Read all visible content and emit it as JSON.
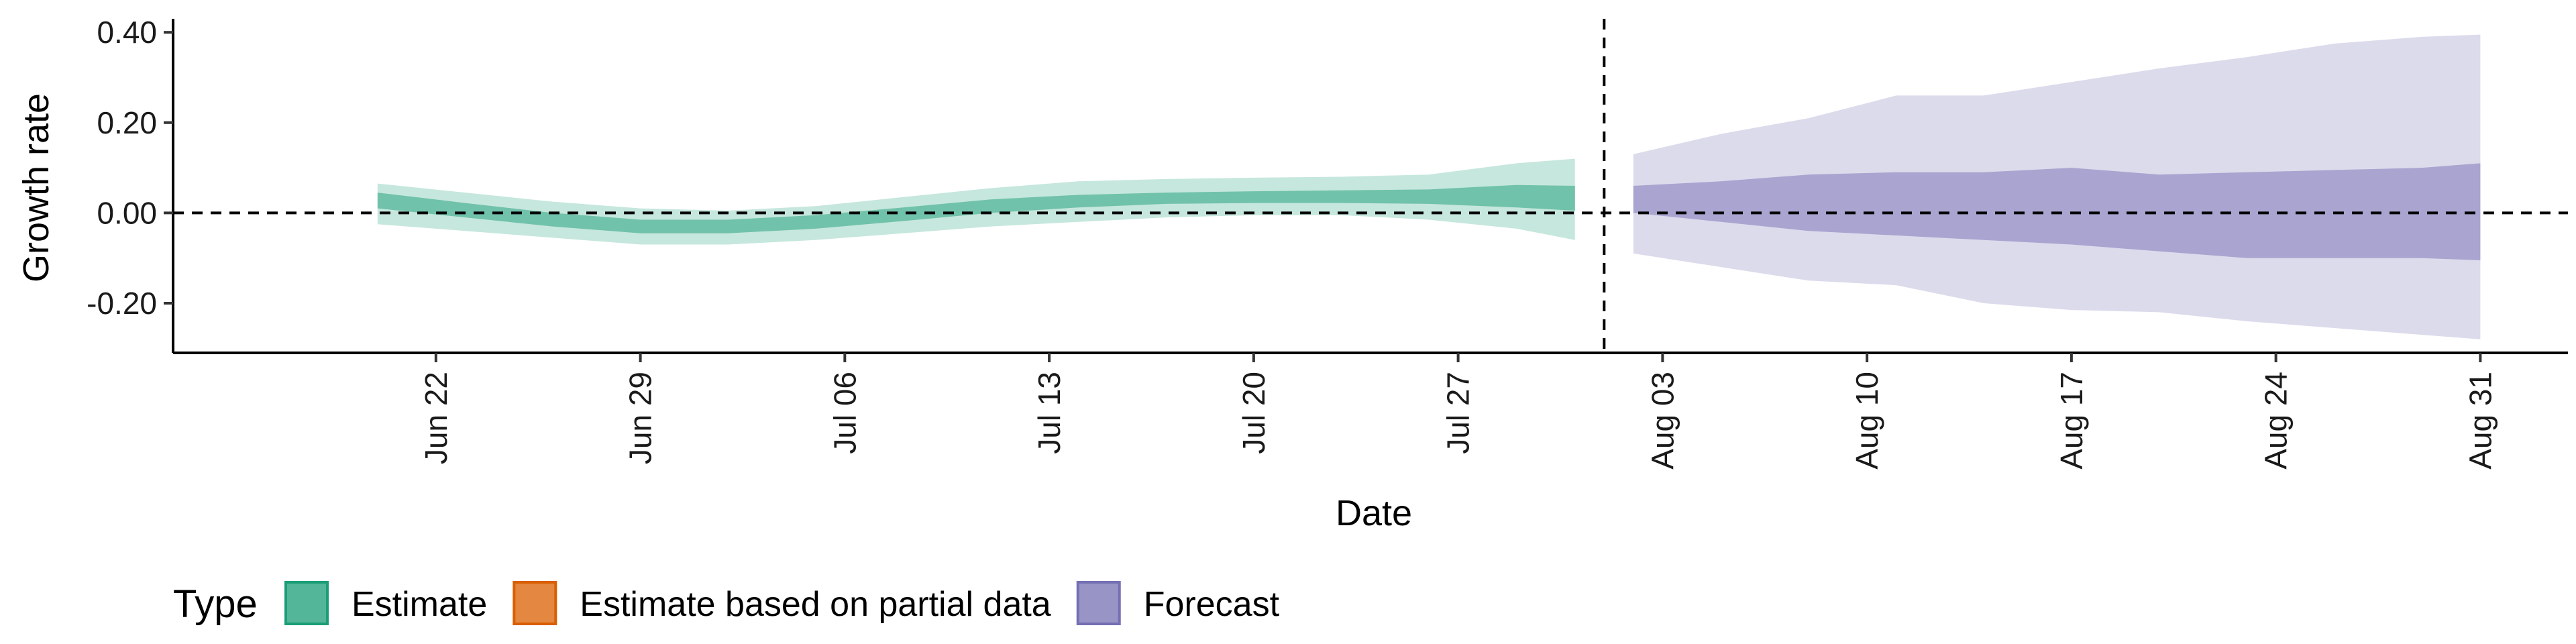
{
  "chart_data": {
    "type": "area",
    "xlabel": "Date",
    "ylabel": "Growth rate",
    "ylim": [
      -0.31,
      0.43
    ],
    "yticks": [
      0.4,
      0.2,
      0.0,
      -0.2
    ],
    "ytick_labels": [
      "0.40",
      "0.20",
      "0.00",
      "-0.20"
    ],
    "xlim": [
      "2020-06-13",
      "2020-09-03"
    ],
    "xticks": [
      "2020-06-22",
      "2020-06-29",
      "2020-07-06",
      "2020-07-13",
      "2020-07-20",
      "2020-07-27",
      "2020-08-03",
      "2020-08-10",
      "2020-08-17",
      "2020-08-24",
      "2020-08-31"
    ],
    "xtick_labels": [
      "Jun 22",
      "Jun 29",
      "Jul 06",
      "Jul 13",
      "Jul 20",
      "Jul 27",
      "Aug 03",
      "Aug 10",
      "Aug 17",
      "Aug 24",
      "Aug 31"
    ],
    "reference_lines": {
      "horizontal_y": 0.0,
      "vertical_x": "2020-08-01"
    },
    "grid": false,
    "legend": {
      "position": "bottom",
      "title": "Type",
      "entries": [
        {
          "label": "Estimate",
          "color": "#1b9e77"
        },
        {
          "label": "Estimate based on partial data",
          "color": "#d95f02"
        },
        {
          "label": "Forecast",
          "color": "#7570b3"
        }
      ]
    },
    "series": [
      {
        "name": "Estimate",
        "color": "#1b9e77",
        "x": [
          "2020-06-20",
          "2020-06-23",
          "2020-06-26",
          "2020-06-29",
          "2020-07-02",
          "2020-07-05",
          "2020-07-08",
          "2020-07-11",
          "2020-07-14",
          "2020-07-17",
          "2020-07-20",
          "2020-07-23",
          "2020-07-26",
          "2020-07-29",
          "2020-07-31"
        ],
        "outer_upper": [
          0.065,
          0.045,
          0.025,
          0.01,
          0.005,
          0.015,
          0.035,
          0.055,
          0.07,
          0.075,
          0.078,
          0.08,
          0.085,
          0.11,
          0.12
        ],
        "outer_lower": [
          -0.025,
          -0.04,
          -0.055,
          -0.07,
          -0.07,
          -0.06,
          -0.045,
          -0.03,
          -0.02,
          -0.01,
          -0.005,
          -0.005,
          -0.015,
          -0.035,
          -0.06
        ],
        "inner_upper": [
          0.045,
          0.022,
          0.0,
          -0.015,
          -0.015,
          -0.005,
          0.012,
          0.03,
          0.04,
          0.045,
          0.048,
          0.05,
          0.052,
          0.062,
          0.06
        ],
        "inner_lower": [
          0.01,
          -0.01,
          -0.03,
          -0.045,
          -0.045,
          -0.035,
          -0.018,
          0.0,
          0.012,
          0.02,
          0.022,
          0.022,
          0.02,
          0.012,
          0.005
        ]
      },
      {
        "name": "Forecast",
        "color": "#7570b3",
        "x": [
          "2020-08-02",
          "2020-08-05",
          "2020-08-08",
          "2020-08-11",
          "2020-08-14",
          "2020-08-17",
          "2020-08-20",
          "2020-08-23",
          "2020-08-26",
          "2020-08-29",
          "2020-08-31"
        ],
        "outer_upper": [
          0.13,
          0.175,
          0.21,
          0.26,
          0.26,
          0.29,
          0.32,
          0.345,
          0.375,
          0.39,
          0.395
        ],
        "outer_lower": [
          -0.09,
          -0.12,
          -0.15,
          -0.16,
          -0.2,
          -0.215,
          -0.22,
          -0.24,
          -0.255,
          -0.27,
          -0.28
        ],
        "inner_upper": [
          0.06,
          0.07,
          0.085,
          0.09,
          0.09,
          0.1,
          0.085,
          0.09,
          0.095,
          0.1,
          0.11
        ],
        "inner_lower": [
          0.0,
          -0.02,
          -0.04,
          -0.05,
          -0.06,
          -0.07,
          -0.085,
          -0.1,
          -0.1,
          -0.1,
          -0.105
        ]
      }
    ]
  }
}
